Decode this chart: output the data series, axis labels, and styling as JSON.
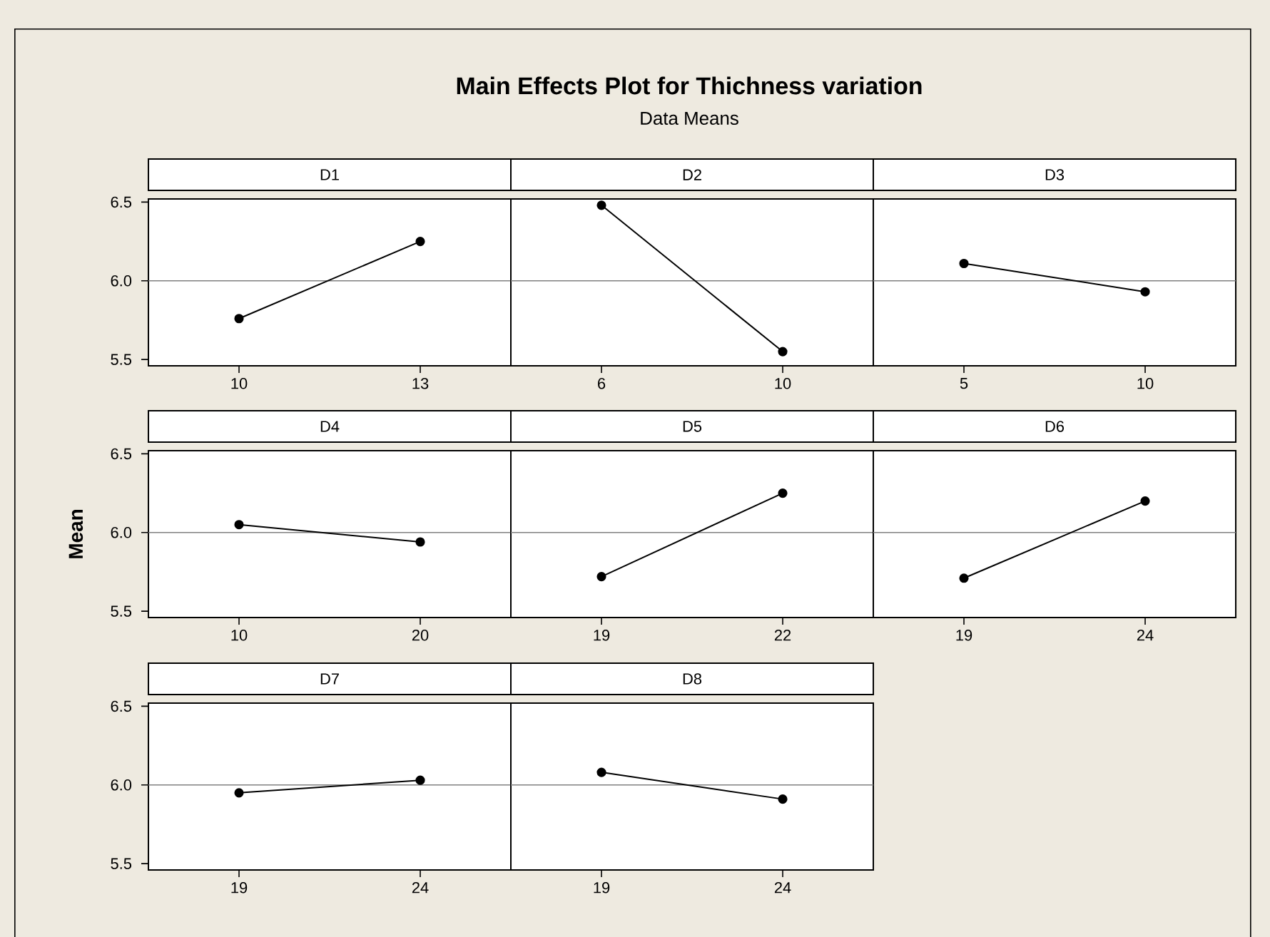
{
  "chart_data": [
    {
      "type": "other",
      "title": "Main Effects Plot for Thichness variation",
      "subtitle": "Data Means"
    },
    {
      "type": "line",
      "title": "D1",
      "categories": [
        "10",
        "13"
      ],
      "values": [
        5.76,
        6.25
      ],
      "color": "#000000",
      "marker": "circle",
      "ylim": [
        5.46,
        6.52
      ],
      "yticks": [
        {
          "value": 5.5,
          "label": "5.5"
        },
        {
          "value": 6.0,
          "label": "6.0"
        },
        {
          "value": 6.5,
          "label": "6.5"
        }
      ],
      "ref_lines": [
        {
          "axis": "y",
          "value": 6.0,
          "color": "#808080"
        }
      ]
    },
    {
      "type": "line",
      "title": "D2",
      "categories": [
        "6",
        "10"
      ],
      "values": [
        6.48,
        5.55
      ],
      "color": "#000000",
      "marker": "circle",
      "ylim": [
        5.46,
        6.52
      ],
      "tick_labels": "x",
      "ref_lines": [
        {
          "axis": "y",
          "value": 6.0,
          "color": "#808080"
        }
      ]
    },
    {
      "type": "line",
      "title": "D3",
      "categories": [
        "5",
        "10"
      ],
      "values": [
        6.11,
        5.93
      ],
      "color": "#000000",
      "marker": "circle",
      "ylim": [
        5.46,
        6.52
      ],
      "tick_labels": "x",
      "ref_lines": [
        {
          "axis": "y",
          "value": 6.0,
          "color": "#808080"
        }
      ]
    },
    {
      "type": "line",
      "title": "D4",
      "ylabel": "Mean",
      "categories": [
        "10",
        "20"
      ],
      "values": [
        6.05,
        5.94
      ],
      "color": "#000000",
      "marker": "circle",
      "ylim": [
        5.46,
        6.52
      ],
      "yticks": [
        {
          "value": 5.5,
          "label": "5.5"
        },
        {
          "value": 6.0,
          "label": "6.0"
        },
        {
          "value": 6.5,
          "label": "6.5"
        }
      ],
      "ref_lines": [
        {
          "axis": "y",
          "value": 6.0,
          "color": "#808080"
        }
      ]
    },
    {
      "type": "line",
      "title": "D5",
      "categories": [
        "19",
        "22"
      ],
      "values": [
        5.72,
        6.25
      ],
      "color": "#000000",
      "marker": "circle",
      "ylim": [
        5.46,
        6.52
      ],
      "tick_labels": "x",
      "ref_lines": [
        {
          "axis": "y",
          "value": 6.0,
          "color": "#808080"
        }
      ]
    },
    {
      "type": "line",
      "title": "D6",
      "categories": [
        "19",
        "24"
      ],
      "values": [
        5.71,
        6.2
      ],
      "color": "#000000",
      "marker": "circle",
      "ylim": [
        5.46,
        6.52
      ],
      "tick_labels": "x",
      "ref_lines": [
        {
          "axis": "y",
          "value": 6.0,
          "color": "#808080"
        }
      ]
    },
    {
      "type": "line",
      "title": "D7",
      "categories": [
        "19",
        "24"
      ],
      "values": [
        5.95,
        6.03
      ],
      "color": "#000000",
      "marker": "circle",
      "ylim": [
        5.46,
        6.52
      ],
      "yticks": [
        {
          "value": 5.5,
          "label": "5.5"
        },
        {
          "value": 6.0,
          "label": "6.0"
        },
        {
          "value": 6.5,
          "label": "6.5"
        }
      ],
      "ref_lines": [
        {
          "axis": "y",
          "value": 6.0,
          "color": "#808080"
        }
      ]
    },
    {
      "type": "line",
      "title": "D8",
      "categories": [
        "19",
        "24"
      ],
      "values": [
        6.08,
        5.91
      ],
      "color": "#000000",
      "marker": "circle",
      "ylim": [
        5.46,
        6.52
      ],
      "tick_labels": "x",
      "ref_lines": [
        {
          "axis": "y",
          "value": 6.0,
          "color": "#808080"
        }
      ]
    }
  ]
}
